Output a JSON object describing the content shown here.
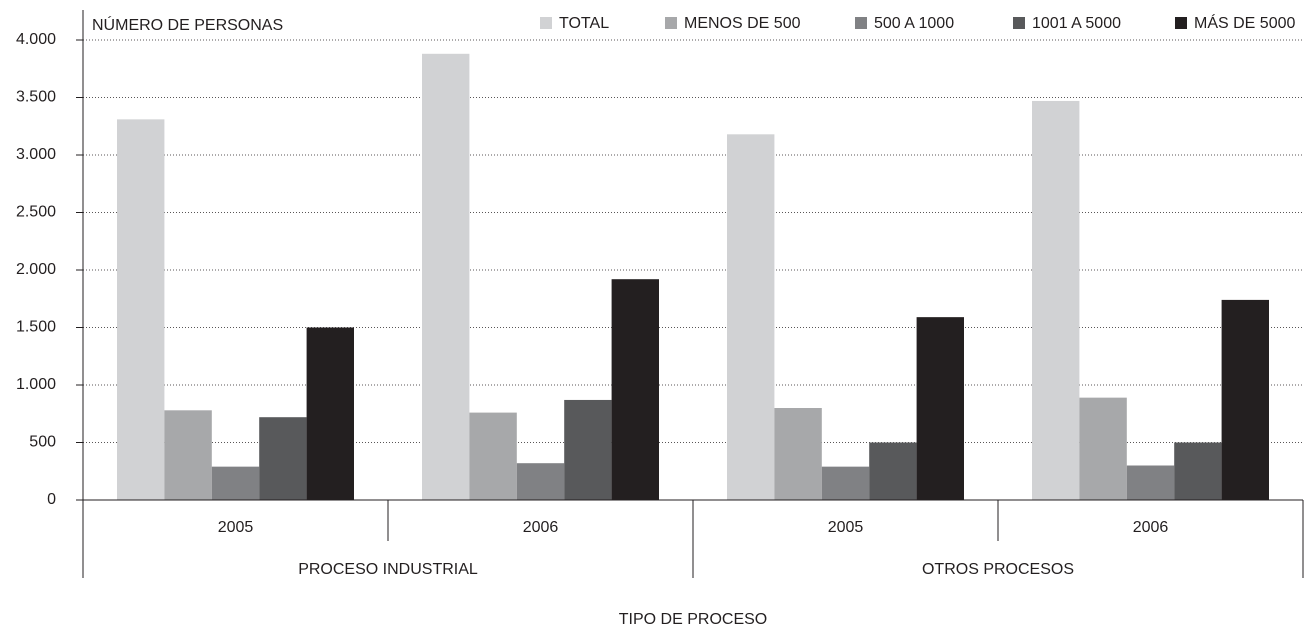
{
  "chart_data": {
    "type": "bar",
    "y_label": "NÚMERO DE PERSONAS",
    "x_label": "TIPO DE PROCESO",
    "groups": [
      {
        "name": "PROCESO INDUSTRIAL",
        "categories": [
          "2005",
          "2006"
        ]
      },
      {
        "name": "OTROS PROCESOS",
        "categories": [
          "2005",
          "2006"
        ]
      }
    ],
    "series": [
      {
        "name": "TOTAL",
        "color": "#d1d2d4",
        "values": [
          3310,
          3880,
          3180,
          3470
        ]
      },
      {
        "name": "MENOS DE 500",
        "color": "#a7a8aa",
        "values": [
          780,
          760,
          800,
          890
        ]
      },
      {
        "name": "500 A 1000",
        "color": "#808184",
        "values": [
          290,
          320,
          290,
          300
        ]
      },
      {
        "name": "1001 A 5000",
        "color": "#58595b",
        "values": [
          720,
          870,
          500,
          500
        ]
      },
      {
        "name": "MÁS DE 5000",
        "color": "#231f20",
        "values": [
          1500,
          1920,
          1590,
          1740
        ]
      }
    ],
    "ylim": [
      0,
      4000
    ],
    "yticks": [
      0,
      500,
      {
        "value": 1000,
        "label": "1.000"
      },
      {
        "value": 1500,
        "label": "1.500"
      },
      {
        "value": 2000,
        "label": "2.000"
      },
      {
        "value": 2500,
        "label": "2.500"
      },
      {
        "value": 3000,
        "label": "3.000"
      },
      {
        "value": 3500,
        "label": "3.500"
      },
      {
        "value": 4000,
        "label": "4.000"
      }
    ],
    "grid": true,
    "legend": "top-right"
  }
}
